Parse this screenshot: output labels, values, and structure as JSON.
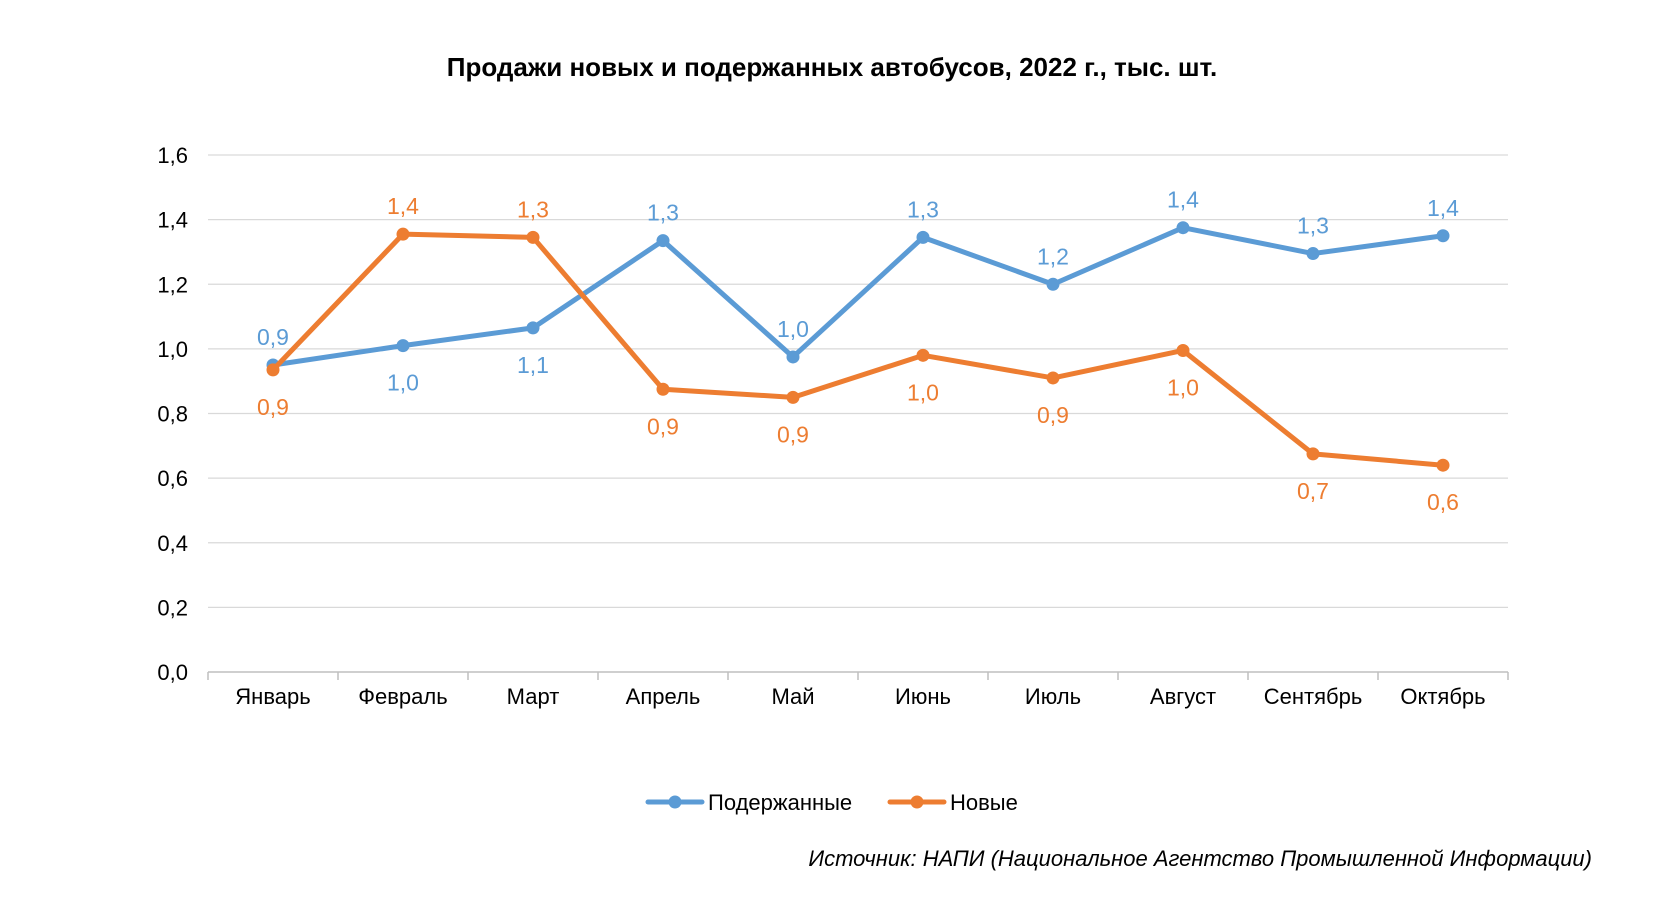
{
  "chart_data": {
    "type": "line",
    "title": "Продажи новых и подержанных автобусов, 2022 г., тыс. шт.",
    "categories": [
      "Январь",
      "Февраль",
      "Март",
      "Апрель",
      "Май",
      "Июнь",
      "Июль",
      "Август",
      "Сентябрь",
      "Октябрь"
    ],
    "series": [
      {
        "name": "Подержанные",
        "color": "#5B9BD5",
        "values": [
          0.95,
          1.01,
          1.065,
          1.335,
          0.975,
          1.345,
          1.2,
          1.375,
          1.295,
          1.35
        ],
        "labels": [
          "0,9",
          "1,0",
          "1,1",
          "1,3",
          "1,0",
          "1,3",
          "1,2",
          "1,4",
          "1,3",
          "1,4"
        ]
      },
      {
        "name": "Новые",
        "color": "#ED7D31",
        "values": [
          0.935,
          1.355,
          1.345,
          0.875,
          0.85,
          0.98,
          0.91,
          0.995,
          0.675,
          0.64
        ],
        "labels": [
          "0,9",
          "1,4",
          "1,3",
          "0,9",
          "0,9",
          "1,0",
          "0,9",
          "1,0",
          "0,7",
          "0,6"
        ]
      }
    ],
    "ylim": [
      0,
      1.6
    ],
    "yticks": [
      "0,0",
      "0,2",
      "0,4",
      "0,6",
      "0,8",
      "1,0",
      "1,2",
      "1,4",
      "1,6"
    ],
    "grid": true,
    "legend_position": "bottom"
  },
  "source": "Источник: НАПИ (Национальное Агентство Промышленной Информации)"
}
